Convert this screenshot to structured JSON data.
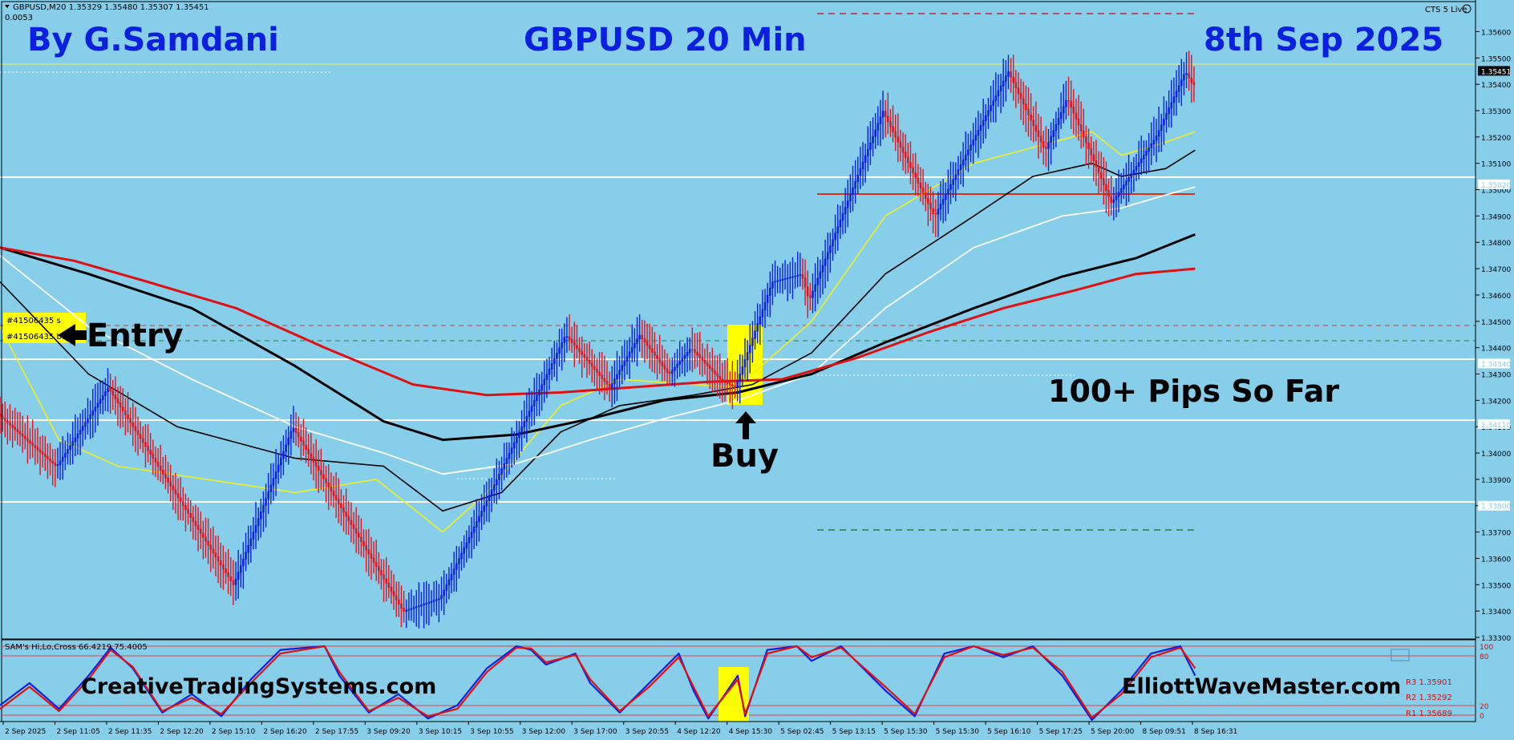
{
  "header": {
    "symbol_info": "GBPUSD,M20  1.35329 1.35480 1.35307 1.35451",
    "symbol_sub": "0.0053",
    "status": "CTS 5 Live"
  },
  "overlay": {
    "author": "By G.Samdani",
    "pair_title": "GBPUSD 20 Min",
    "date_title": "8th Sep 2025",
    "entry_label": "Entry",
    "buy_label": "Buy",
    "pips_label": "100+ Pips So Far",
    "site_left": "CreativeTradingSystems.com",
    "site_right": "ElliottWaveMaster.com",
    "order_tag_1": "#41506435 s",
    "order_tag_2": "#41506435 buy"
  },
  "indicator": {
    "name": "SAM's Hi,Lo,Cross 66.4219 75.4005",
    "r3": "R3 1.35901",
    "r2": "R2 1.35292",
    "r1": "R1 1.35689",
    "right_ticks": [
      "100",
      "80",
      "20",
      "0"
    ]
  },
  "colors": {
    "background": "#87ceeb",
    "bull_bar": "#0a1fe0",
    "bear_bar": "#e0141e",
    "text_blue": "#0a1fe0",
    "text_black": "#000000",
    "ma_red": "#e01010",
    "ma_yellow": "#f0f020",
    "ma_white": "#ffffff",
    "ma_black": "#000000",
    "highlight": "#ffff00"
  },
  "chart_data": {
    "type": "candlestick",
    "title": "GBPUSD 20 Min",
    "ylim": [
      1.333,
      1.3565
    ],
    "price_ticks": [
      "1.35600",
      "1.35500",
      "1.35400",
      "1.35300",
      "1.35200",
      "1.35100",
      "1.35000",
      "1.34900",
      "1.34800",
      "1.34700",
      "1.34600",
      "1.34500",
      "1.34400",
      "1.34300",
      "1.34200",
      "1.34100",
      "1.34000",
      "1.33900",
      "1.33800",
      "1.33700",
      "1.33600",
      "1.33500",
      "1.33400",
      "1.33300"
    ],
    "price_tags": [
      {
        "label": "1.35451",
        "price": 1.35451,
        "style": "yellow"
      },
      {
        "label": "1.35020",
        "price": 1.3502,
        "style": "white"
      },
      {
        "label": "1.34340",
        "price": 1.3434,
        "style": "white"
      },
      {
        "label": "1.34110",
        "price": 1.3411,
        "style": "white"
      },
      {
        "label": "1.33800",
        "price": 1.338,
        "style": "white"
      }
    ],
    "time_labels": [
      "2 Sep 2025",
      "2 Sep 11:05",
      "2 Sep 11:35",
      "2 Sep 12:20",
      "2 Sep 15:10",
      "2 Sep 16:20",
      "2 Sep 17:55",
      "3 Sep 09:20",
      "3 Sep 10:15",
      "3 Sep 10:55",
      "3 Sep 12:00",
      "3 Sep 17:00",
      "3 Sep 20:55",
      "4 Sep 12:20",
      "4 Sep 15:30",
      "5 Sep 02:45",
      "5 Sep 13:15",
      "5 Sep 15:30",
      "5 Sep 15:30",
      "5 Sep 16:10",
      "5 Sep 17:25",
      "5 Sep 20:00",
      "8 Sep 09:51",
      "8 Sep 16:31"
    ],
    "price_path": [
      {
        "t": 0,
        "p": 1.3415
      },
      {
        "t": 0.04,
        "p": 1.3395
      },
      {
        "t": 0.075,
        "p": 1.3425
      },
      {
        "t": 0.16,
        "p": 1.335
      },
      {
        "t": 0.2,
        "p": 1.341
      },
      {
        "t": 0.275,
        "p": 1.334
      },
      {
        "t": 0.3,
        "p": 1.3345
      },
      {
        "t": 0.385,
        "p": 1.3445
      },
      {
        "t": 0.415,
        "p": 1.3425
      },
      {
        "t": 0.435,
        "p": 1.3445
      },
      {
        "t": 0.455,
        "p": 1.343
      },
      {
        "t": 0.47,
        "p": 1.344
      },
      {
        "t": 0.49,
        "p": 1.3428
      },
      {
        "t": 0.5,
        "p": 1.3425
      },
      {
        "t": 0.525,
        "p": 1.3465
      },
      {
        "t": 0.545,
        "p": 1.3468
      },
      {
        "t": 0.55,
        "p": 1.3458
      },
      {
        "t": 0.6,
        "p": 1.353
      },
      {
        "t": 0.635,
        "p": 1.349
      },
      {
        "t": 0.685,
        "p": 1.3545
      },
      {
        "t": 0.71,
        "p": 1.3515
      },
      {
        "t": 0.725,
        "p": 1.3535
      },
      {
        "t": 0.755,
        "p": 1.3495
      },
      {
        "t": 0.785,
        "p": 1.352
      },
      {
        "t": 0.805,
        "p": 1.3545
      },
      {
        "t": 0.81,
        "p": 1.354
      }
    ],
    "moving_averages": [
      {
        "color": "yellow",
        "points": [
          [
            0,
            1.3448
          ],
          [
            0.04,
            1.3405
          ],
          [
            0.08,
            1.3395
          ],
          [
            0.14,
            1.339
          ],
          [
            0.2,
            1.3385
          ],
          [
            0.255,
            1.339
          ],
          [
            0.3,
            1.337
          ],
          [
            0.33,
            1.3385
          ],
          [
            0.38,
            1.3418
          ],
          [
            0.42,
            1.3428
          ],
          [
            0.47,
            1.3426
          ],
          [
            0.5,
            1.3425
          ],
          [
            0.55,
            1.345
          ],
          [
            0.6,
            1.349
          ],
          [
            0.66,
            1.351
          ],
          [
            0.7,
            1.3516
          ],
          [
            0.74,
            1.3522
          ],
          [
            0.76,
            1.3513
          ],
          [
            0.79,
            1.3518
          ],
          [
            0.81,
            1.3522
          ]
        ]
      },
      {
        "color": "black",
        "points": [
          [
            0,
            1.3465
          ],
          [
            0.06,
            1.343
          ],
          [
            0.12,
            1.341
          ],
          [
            0.2,
            1.3398
          ],
          [
            0.26,
            1.3395
          ],
          [
            0.3,
            1.3378
          ],
          [
            0.34,
            1.3385
          ],
          [
            0.38,
            1.3408
          ],
          [
            0.42,
            1.3418
          ],
          [
            0.47,
            1.3422
          ],
          [
            0.51,
            1.3426
          ],
          [
            0.55,
            1.3438
          ],
          [
            0.6,
            1.3468
          ],
          [
            0.66,
            1.349
          ],
          [
            0.7,
            1.3505
          ],
          [
            0.74,
            1.351
          ],
          [
            0.76,
            1.3505
          ],
          [
            0.79,
            1.3508
          ],
          [
            0.81,
            1.3515
          ]
        ]
      },
      {
        "color": "white",
        "points": [
          [
            0,
            1.3475
          ],
          [
            0.06,
            1.3448
          ],
          [
            0.13,
            1.3428
          ],
          [
            0.2,
            1.341
          ],
          [
            0.26,
            1.34
          ],
          [
            0.3,
            1.3392
          ],
          [
            0.35,
            1.3396
          ],
          [
            0.4,
            1.3405
          ],
          [
            0.45,
            1.3413
          ],
          [
            0.5,
            1.342
          ],
          [
            0.55,
            1.343
          ],
          [
            0.6,
            1.3455
          ],
          [
            0.66,
            1.3478
          ],
          [
            0.72,
            1.349
          ],
          [
            0.76,
            1.3493
          ],
          [
            0.79,
            1.3498
          ],
          [
            0.81,
            1.3501
          ]
        ]
      },
      {
        "color": "black-thick",
        "points": [
          [
            0,
            1.3478
          ],
          [
            0.06,
            1.3468
          ],
          [
            0.13,
            1.3455
          ],
          [
            0.2,
            1.3433
          ],
          [
            0.26,
            1.3412
          ],
          [
            0.3,
            1.3405
          ],
          [
            0.35,
            1.3407
          ],
          [
            0.4,
            1.3413
          ],
          [
            0.45,
            1.342
          ],
          [
            0.5,
            1.3423
          ],
          [
            0.55,
            1.343
          ],
          [
            0.6,
            1.3442
          ],
          [
            0.66,
            1.3455
          ],
          [
            0.72,
            1.3467
          ],
          [
            0.77,
            1.3474
          ],
          [
            0.81,
            1.3483
          ]
        ]
      },
      {
        "color": "red",
        "points": [
          [
            0,
            1.3478
          ],
          [
            0.05,
            1.3473
          ],
          [
            0.1,
            1.3465
          ],
          [
            0.16,
            1.3455
          ],
          [
            0.22,
            1.344
          ],
          [
            0.28,
            1.3426
          ],
          [
            0.33,
            1.3422
          ],
          [
            0.38,
            1.3423
          ],
          [
            0.43,
            1.3425
          ],
          [
            0.48,
            1.3427
          ],
          [
            0.53,
            1.3428
          ],
          [
            0.58,
            1.3436
          ],
          [
            0.63,
            1.3446
          ],
          [
            0.68,
            1.3455
          ],
          [
            0.73,
            1.3462
          ],
          [
            0.77,
            1.3468
          ],
          [
            0.81,
            1.347
          ]
        ]
      }
    ],
    "indicator_lines": {
      "blue": [
        [
          0,
          0.2
        ],
        [
          0.02,
          0.5
        ],
        [
          0.04,
          0.15
        ],
        [
          0.06,
          0.6
        ],
        [
          0.075,
          0.98
        ],
        [
          0.09,
          0.7
        ],
        [
          0.11,
          0.1
        ],
        [
          0.13,
          0.35
        ],
        [
          0.15,
          0.05
        ],
        [
          0.17,
          0.55
        ],
        [
          0.19,
          0.95
        ],
        [
          0.22,
          1.0
        ],
        [
          0.23,
          0.6
        ],
        [
          0.25,
          0.1
        ],
        [
          0.27,
          0.35
        ],
        [
          0.29,
          0.02
        ],
        [
          0.31,
          0.2
        ],
        [
          0.33,
          0.7
        ],
        [
          0.35,
          1.0
        ],
        [
          0.36,
          0.95
        ],
        [
          0.37,
          0.75
        ],
        [
          0.39,
          0.9
        ],
        [
          0.4,
          0.5
        ],
        [
          0.42,
          0.1
        ],
        [
          0.44,
          0.5
        ],
        [
          0.46,
          0.9
        ],
        [
          0.47,
          0.4
        ],
        [
          0.48,
          0.02
        ],
        [
          0.5,
          0.6
        ],
        [
          0.505,
          0.05
        ],
        [
          0.52,
          0.95
        ],
        [
          0.54,
          1.0
        ],
        [
          0.55,
          0.8
        ],
        [
          0.57,
          1.0
        ],
        [
          0.6,
          0.4
        ],
        [
          0.62,
          0.05
        ],
        [
          0.64,
          0.9
        ],
        [
          0.66,
          1.0
        ],
        [
          0.68,
          0.85
        ],
        [
          0.7,
          1.0
        ],
        [
          0.72,
          0.6
        ],
        [
          0.74,
          0.0
        ],
        [
          0.76,
          0.4
        ],
        [
          0.78,
          0.9
        ],
        [
          0.8,
          1.0
        ],
        [
          0.81,
          0.6
        ]
      ],
      "red": [
        [
          0,
          0.15
        ],
        [
          0.02,
          0.45
        ],
        [
          0.04,
          0.12
        ],
        [
          0.06,
          0.55
        ],
        [
          0.075,
          0.95
        ],
        [
          0.09,
          0.72
        ],
        [
          0.11,
          0.12
        ],
        [
          0.13,
          0.3
        ],
        [
          0.15,
          0.08
        ],
        [
          0.17,
          0.5
        ],
        [
          0.19,
          0.9
        ],
        [
          0.22,
          1.0
        ],
        [
          0.23,
          0.65
        ],
        [
          0.25,
          0.12
        ],
        [
          0.27,
          0.3
        ],
        [
          0.29,
          0.05
        ],
        [
          0.31,
          0.15
        ],
        [
          0.33,
          0.65
        ],
        [
          0.35,
          0.98
        ],
        [
          0.36,
          0.97
        ],
        [
          0.37,
          0.78
        ],
        [
          0.39,
          0.88
        ],
        [
          0.4,
          0.55
        ],
        [
          0.42,
          0.12
        ],
        [
          0.44,
          0.45
        ],
        [
          0.46,
          0.85
        ],
        [
          0.47,
          0.45
        ],
        [
          0.48,
          0.05
        ],
        [
          0.5,
          0.55
        ],
        [
          0.505,
          0.08
        ],
        [
          0.52,
          0.9
        ],
        [
          0.54,
          1.0
        ],
        [
          0.55,
          0.85
        ],
        [
          0.57,
          0.98
        ],
        [
          0.6,
          0.45
        ],
        [
          0.62,
          0.08
        ],
        [
          0.64,
          0.85
        ],
        [
          0.66,
          1.0
        ],
        [
          0.68,
          0.88
        ],
        [
          0.7,
          0.98
        ],
        [
          0.72,
          0.65
        ],
        [
          0.74,
          0.03
        ],
        [
          0.76,
          0.35
        ],
        [
          0.78,
          0.85
        ],
        [
          0.8,
          0.98
        ],
        [
          0.81,
          0.7
        ]
      ]
    }
  }
}
